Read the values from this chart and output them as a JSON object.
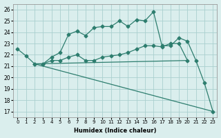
{
  "line1_x": [
    0,
    1,
    2,
    3,
    4,
    5,
    6,
    7,
    8,
    9,
    10,
    11,
    12,
    13,
    14,
    15,
    16,
    17,
    18,
    19,
    20,
    21,
    22,
    23
  ],
  "line1_y": [
    22.5,
    21.9,
    21.2,
    21.2,
    21.8,
    22.2,
    23.8,
    24.1,
    23.7,
    24.4,
    24.5,
    24.5,
    25.0,
    24.5,
    25.1,
    25.0,
    25.8,
    22.8,
    22.8,
    23.5,
    23.2,
    21.5,
    19.5,
    17.0
  ],
  "line2_x": [
    2,
    3,
    4,
    5,
    6,
    7,
    8,
    9,
    10,
    11,
    12,
    13,
    14,
    15,
    16,
    17,
    18,
    19,
    20
  ],
  "line2_y": [
    21.2,
    21.2,
    21.5,
    21.5,
    21.8,
    22.0,
    21.5,
    21.5,
    21.8,
    21.9,
    22.0,
    22.2,
    22.5,
    22.8,
    22.8,
    22.7,
    23.0,
    23.0,
    21.5
  ],
  "line3_x": [
    2,
    20
  ],
  "line3_y": [
    21.2,
    21.5
  ],
  "line4_x": [
    2,
    23
  ],
  "line4_y": [
    21.2,
    17.0
  ],
  "color": "#2d7d6e",
  "bg_color": "#daeeed",
  "grid_color": "#aacfcf",
  "xlabel": "Humidex (Indice chaleur)",
  "ylim": [
    16.5,
    26.5
  ],
  "xlim": [
    -0.5,
    23.5
  ],
  "yticks": [
    17,
    18,
    19,
    20,
    21,
    22,
    23,
    24,
    25,
    26
  ],
  "xticks": [
    0,
    1,
    2,
    3,
    4,
    5,
    6,
    7,
    8,
    9,
    10,
    11,
    12,
    13,
    14,
    15,
    16,
    17,
    18,
    19,
    20,
    21,
    22,
    23
  ]
}
